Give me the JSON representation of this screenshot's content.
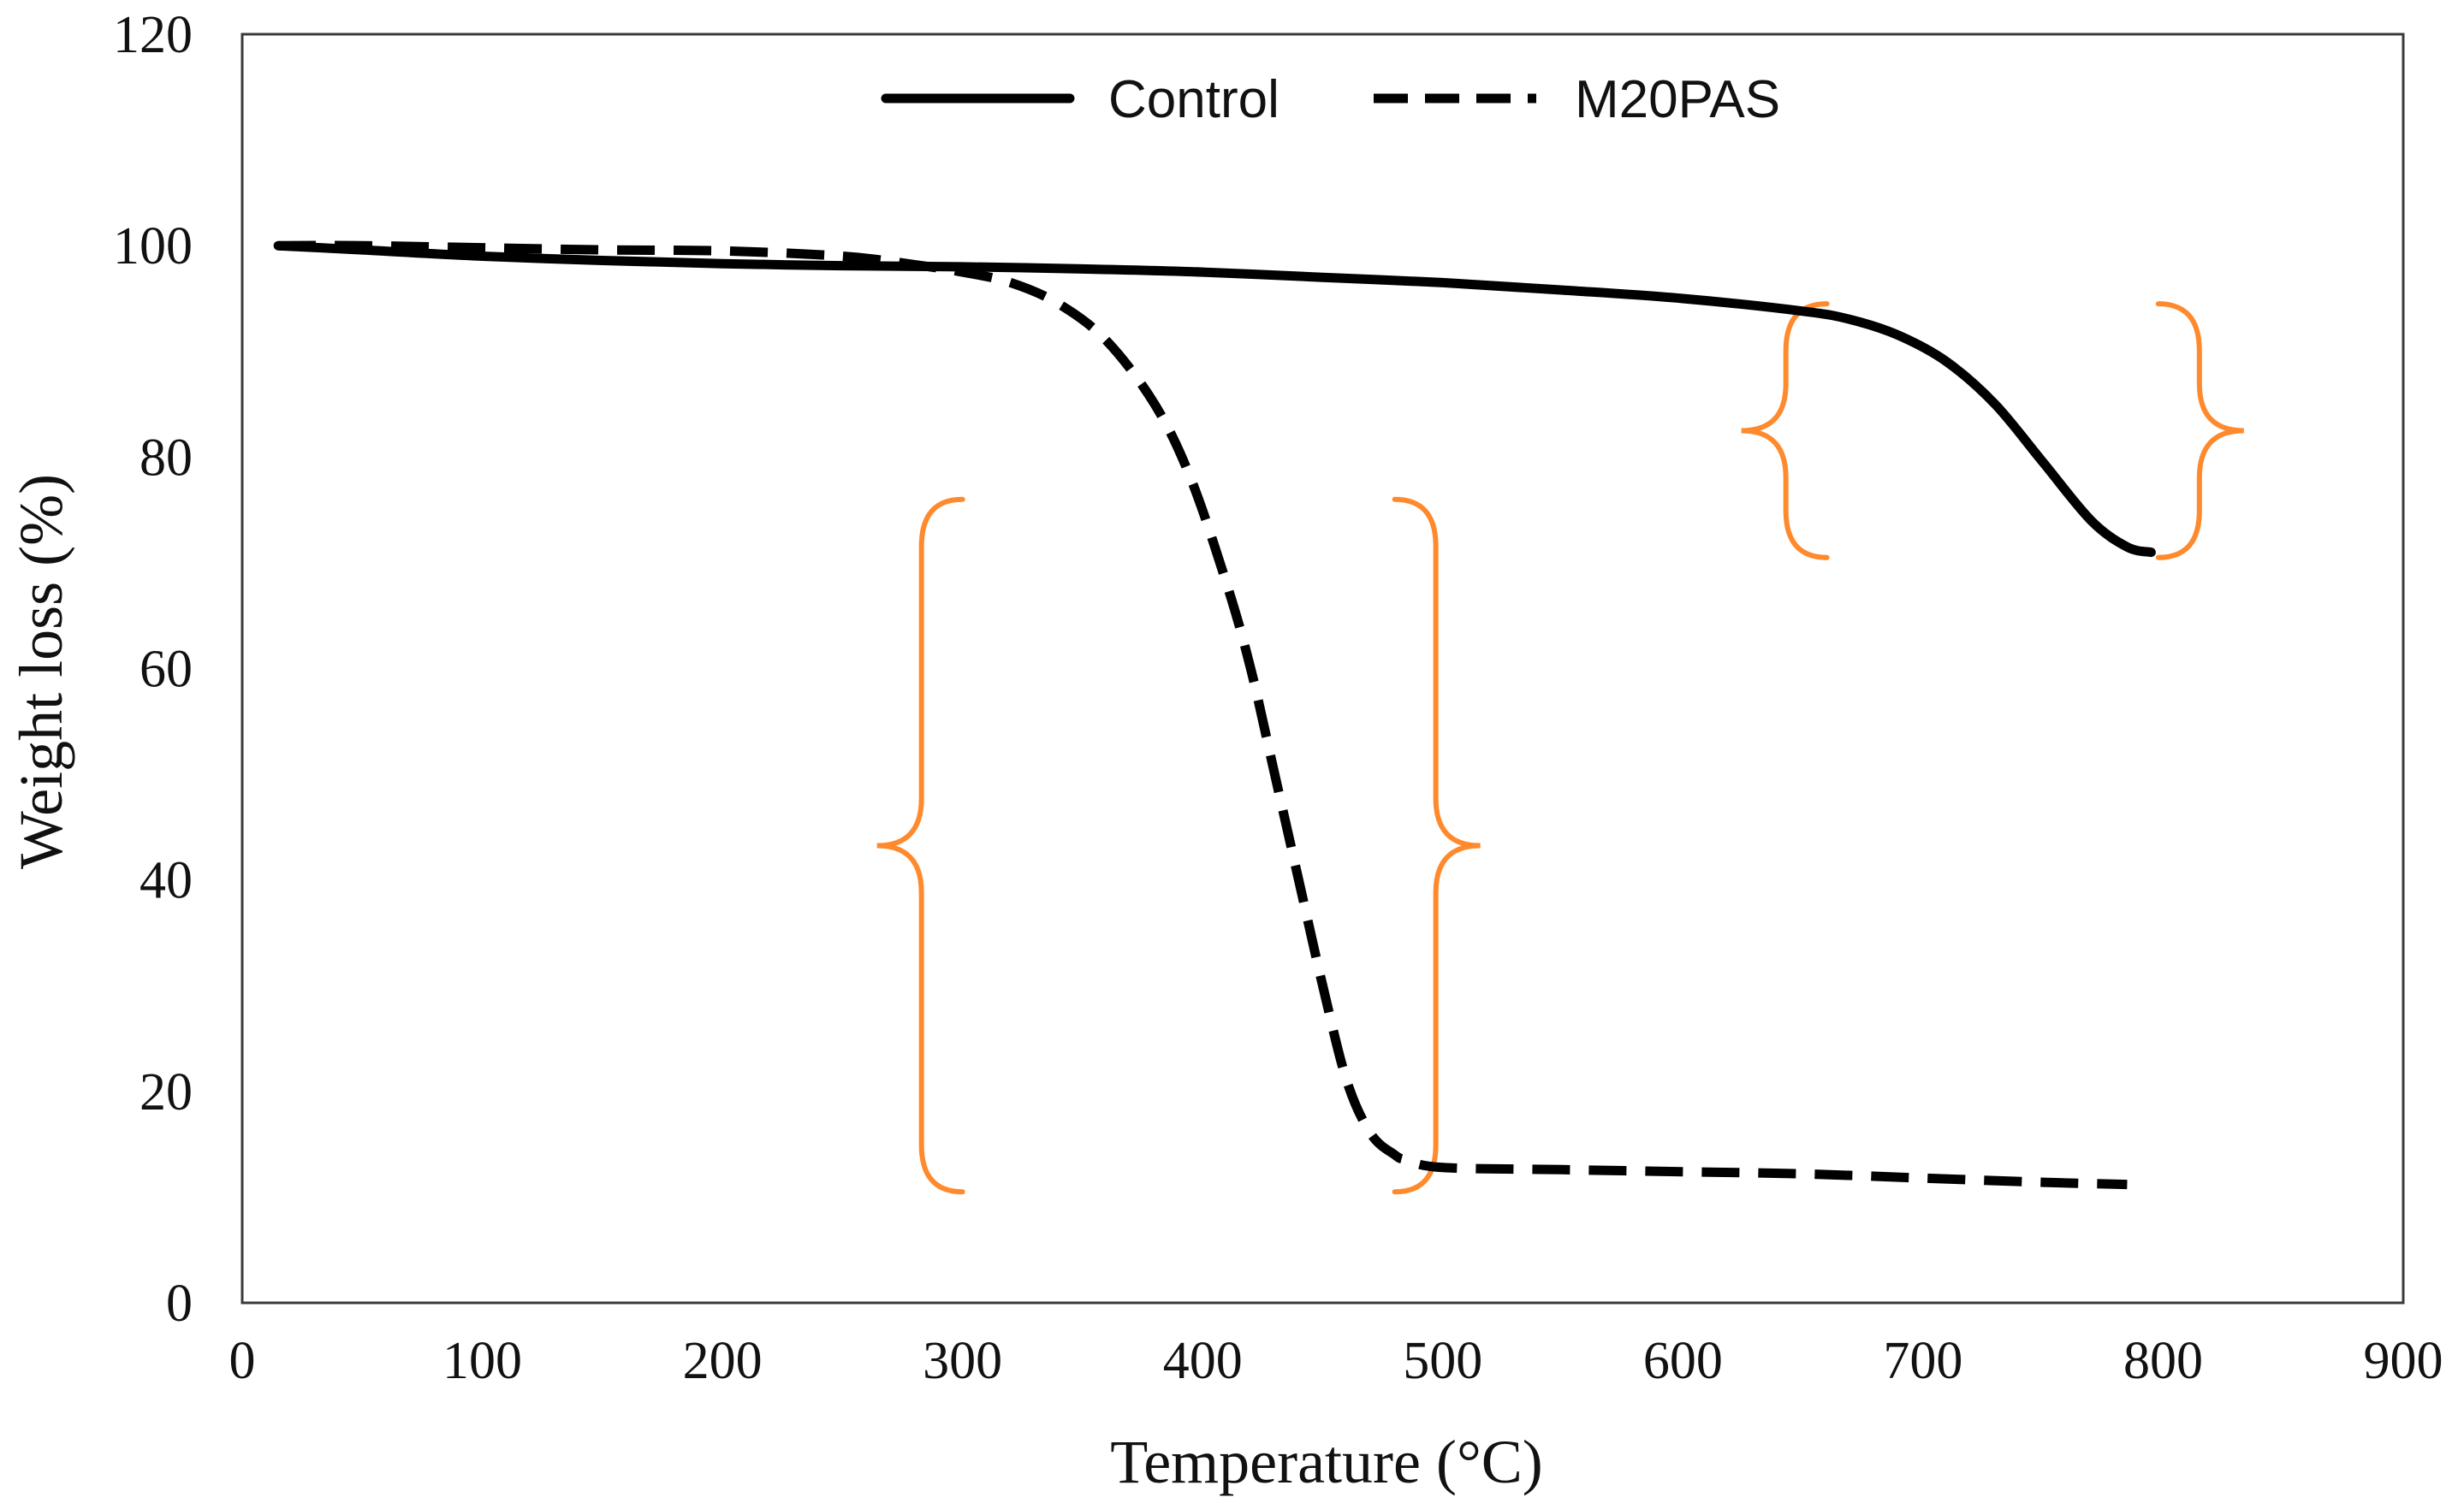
{
  "chart_data": {
    "type": "line",
    "title": "",
    "xlabel": "Temperature (°C)",
    "ylabel": "Weight loss (%)",
    "xlim": [
      0,
      900
    ],
    "ylim": [
      0,
      120
    ],
    "xticks": [
      0,
      100,
      200,
      300,
      400,
      500,
      600,
      700,
      800,
      900
    ],
    "yticks": [
      0,
      20,
      40,
      60,
      80,
      100,
      120
    ],
    "grid": false,
    "legend_position": "top-center",
    "series": [
      {
        "name": "Control",
        "style": "solid",
        "color": "#000000",
        "x": [
          15,
          50,
          100,
          150,
          200,
          250,
          300,
          350,
          400,
          450,
          500,
          550,
          600,
          650,
          670,
          690,
          710,
          730,
          750,
          770,
          785,
          795
        ],
        "y": [
          100,
          99.6,
          99.0,
          98.6,
          98.3,
          98.1,
          98.0,
          97.8,
          97.5,
          97.0,
          96.5,
          95.8,
          95.0,
          93.8,
          93.0,
          91.5,
          89.0,
          85.0,
          79.5,
          74.0,
          71.5,
          71.0
        ]
      },
      {
        "name": "M20PAS",
        "style": "dashed",
        "color": "#000000",
        "x": [
          15,
          50,
          100,
          150,
          200,
          250,
          280,
          300,
          320,
          340,
          360,
          380,
          395,
          410,
          420,
          430,
          440,
          450,
          460,
          470,
          480,
          485,
          500,
          550,
          600,
          650,
          700,
          750,
          785
        ],
        "y": [
          100,
          100,
          99.8,
          99.6,
          99.5,
          99.0,
          98.2,
          97.5,
          96.5,
          94.5,
          91.0,
          85.0,
          78.0,
          68.0,
          60.0,
          50.0,
          40.0,
          30.0,
          21.0,
          16.0,
          14.0,
          13.5,
          12.8,
          12.6,
          12.4,
          12.2,
          11.8,
          11.4,
          11.2
        ]
      }
    ],
    "annotations": [
      {
        "type": "brace-pair",
        "color": "#FF8A2D",
        "x_left": 300,
        "x_right": 480,
        "y_top": 76,
        "y_bottom": 10.5
      },
      {
        "type": "brace-pair",
        "color": "#FF8A2D",
        "x_left": 660,
        "x_right": 798,
        "y_top": 94.5,
        "y_bottom": 70.5
      }
    ]
  }
}
